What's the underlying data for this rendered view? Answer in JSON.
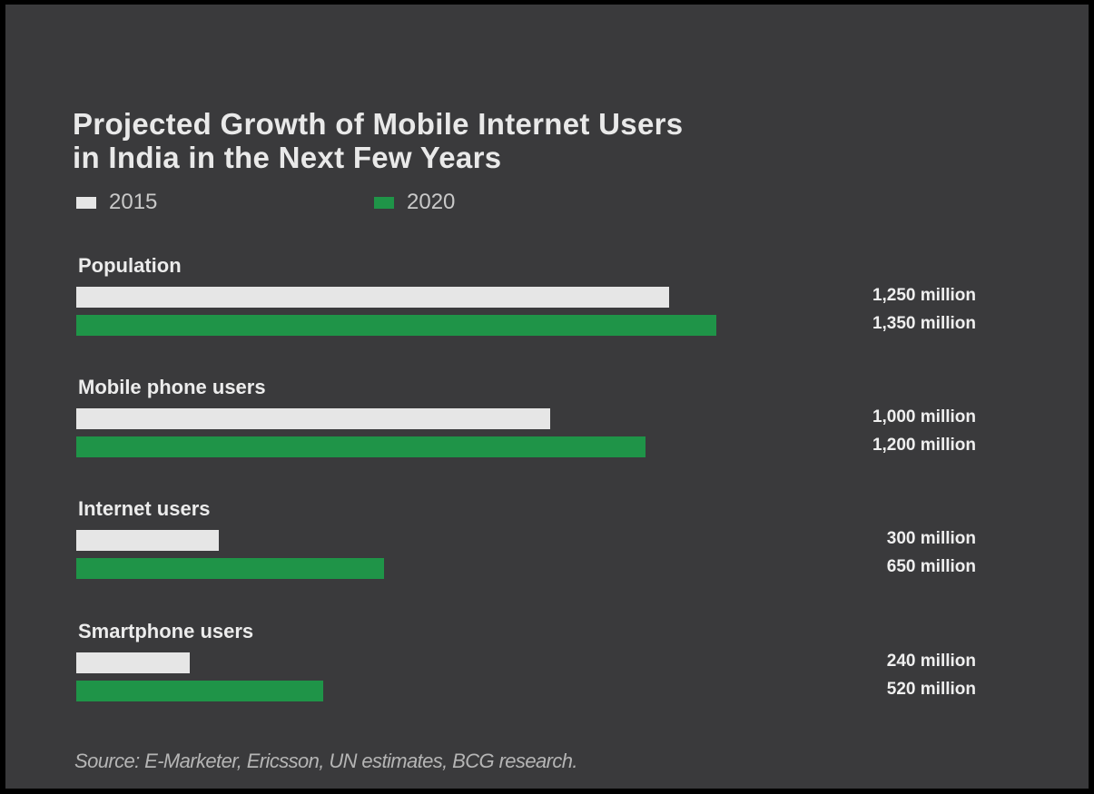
{
  "colors": {
    "background": "#3a3a3c",
    "series_2015": "#e6e6e6",
    "series_2020": "#1f9448"
  },
  "chart_data": {
    "type": "bar",
    "orientation": "horizontal",
    "title_lines": [
      "Projected Growth of Mobile Internet Users",
      "in India in the Next Few Years"
    ],
    "categories": [
      "Population",
      "Mobile phone users",
      "Internet users",
      "Smartphone users"
    ],
    "series": [
      {
        "name": "2015",
        "color": "#e6e6e6",
        "values": [
          1250,
          1000,
          300,
          240
        ],
        "labels": [
          "1,250 million",
          "1,000 million",
          "300 million",
          "240 million"
        ]
      },
      {
        "name": "2020",
        "color": "#1f9448",
        "values": [
          1350,
          1200,
          650,
          520
        ],
        "labels": [
          "1,350 million",
          "1,200 million",
          "650 million",
          "520 million"
        ]
      }
    ],
    "unit": "million",
    "xlim": [
      0,
      1350
    ],
    "grid": false,
    "legend_position": "top-left",
    "source": "Source: E-Marketer, Ericsson, UN  estimates, BCG research."
  }
}
